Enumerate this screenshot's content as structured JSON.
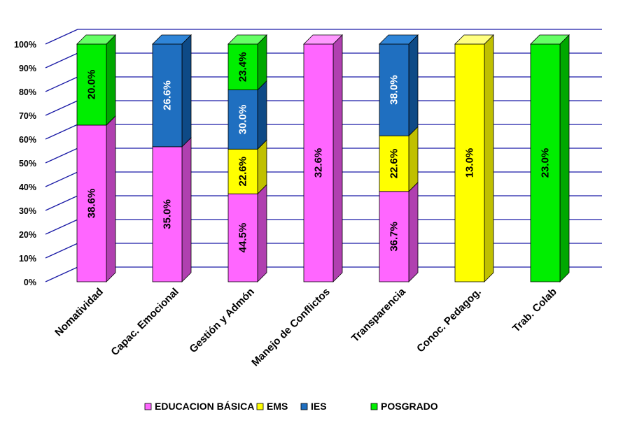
{
  "chart_data": {
    "type": "bar",
    "stacked": "percent",
    "three_d": true,
    "categories": [
      "Nomatividad",
      "Capac. Emocional",
      "Gestión y Admón",
      "Manejo de Conflictos",
      "Transparencia",
      "Conoc. Pedagog.",
      "Trab. Colab"
    ],
    "y_ticks": [
      "0%",
      "10%",
      "20%",
      "30%",
      "40%",
      "50%",
      "60%",
      "70%",
      "80%",
      "90%",
      "100%"
    ],
    "ylim": [
      0,
      100
    ],
    "grid": true,
    "legend_position": "bottom",
    "series": [
      {
        "name": "EDUCACION BÁSICA",
        "color": "#ff66ff",
        "top_color": "#ff99ff",
        "side_color": "#b040b0",
        "share": [
          65.9,
          56.8,
          37.0,
          100,
          38.0,
          0,
          0
        ],
        "labels": [
          "38.6%",
          "35.0%",
          "44.5%",
          "32.6%",
          "36.7%",
          "",
          ""
        ]
      },
      {
        "name": "EMS",
        "color": "#ffff00",
        "top_color": "#ffff80",
        "side_color": "#c0c000",
        "share": [
          0,
          0,
          18.8,
          0,
          23.4,
          100,
          0
        ],
        "labels": [
          "",
          "",
          "22.6%",
          "",
          "22.6%",
          "13.0%",
          ""
        ]
      },
      {
        "name": "IES",
        "color": "#1f6fc0",
        "top_color": "#2f85d8",
        "side_color": "#0e4a86",
        "share": [
          0,
          43.2,
          24.9,
          0,
          38.6,
          0,
          0
        ],
        "labels": [
          "",
          "26.6%",
          "30.0%",
          "",
          "38.0%",
          "",
          ""
        ]
      },
      {
        "name": "POSGRADO",
        "color": "#00ee00",
        "top_color": "#66ff66",
        "side_color": "#00a800",
        "share": [
          34.1,
          0,
          19.3,
          0,
          0,
          0,
          100
        ],
        "labels": [
          "20.0%",
          "",
          "23.4%",
          "",
          "",
          "",
          "23.0%"
        ]
      }
    ]
  }
}
